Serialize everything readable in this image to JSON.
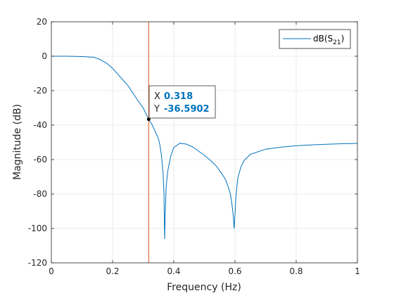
{
  "colors": {
    "series": "#0072bd",
    "cursor_line": "#d95319",
    "datatip_value": "#0072bd",
    "axes": "#262626",
    "grid": "#e6e6e6"
  },
  "legend": {
    "label_main": "dB(S",
    "label_sub": "21",
    "label_close": ")",
    "position": "top-right"
  },
  "datatip": {
    "x_label": "X",
    "x_value": "0.318",
    "y_label": "Y",
    "y_value": "-36.5902"
  },
  "chart_data": {
    "type": "line",
    "title": "",
    "xlabel": "Frequency (Hz)",
    "ylabel": "Magnitude (dB)",
    "xlim": [
      0,
      1
    ],
    "ylim": [
      -120,
      20
    ],
    "xticks": [
      0,
      0.2,
      0.4,
      0.6,
      0.8,
      1
    ],
    "xtick_labels": [
      "0",
      "0.2",
      "0.4",
      "0.6",
      "0.8",
      "1"
    ],
    "yticks": [
      20,
      0,
      -20,
      -40,
      -60,
      -80,
      -100,
      -120
    ],
    "ytick_labels": [
      "20",
      "0",
      "-20",
      "-40",
      "-60",
      "-80",
      "-100",
      "-120"
    ],
    "grid": true,
    "vertical_cursor_x": 0.318,
    "marker": {
      "x": 0.318,
      "y": -36.5902
    },
    "series": [
      {
        "name": "dB(S21)",
        "x": [
          0,
          0.05,
          0.1,
          0.14,
          0.16,
          0.18,
          0.2,
          0.22,
          0.25,
          0.28,
          0.3,
          0.318,
          0.33,
          0.34,
          0.35,
          0.355,
          0.36,
          0.365,
          0.368,
          0.37,
          0.372,
          0.375,
          0.38,
          0.39,
          0.4,
          0.42,
          0.44,
          0.46,
          0.48,
          0.5,
          0.52,
          0.54,
          0.56,
          0.57,
          0.58,
          0.585,
          0.59,
          0.594,
          0.597,
          0.6,
          0.603,
          0.607,
          0.61,
          0.62,
          0.63,
          0.65,
          0.7,
          0.75,
          0.8,
          0.85,
          0.9,
          0.95,
          1
        ],
        "y": [
          0,
          0,
          -0.2,
          -0.6,
          -2,
          -4,
          -7,
          -11,
          -17,
          -25,
          -30,
          -36.59,
          -40,
          -44,
          -48,
          -52,
          -58,
          -68,
          -80,
          -106,
          -92,
          -76,
          -67,
          -58,
          -53,
          -50.5,
          -51,
          -52.5,
          -55,
          -57.5,
          -60.5,
          -64,
          -69,
          -72,
          -77,
          -80,
          -86,
          -92,
          -100,
          -92,
          -82,
          -74,
          -70,
          -64,
          -60.5,
          -57,
          -54,
          -52.8,
          -52,
          -51.5,
          -51.1,
          -50.8,
          -50.6
        ]
      }
    ]
  }
}
